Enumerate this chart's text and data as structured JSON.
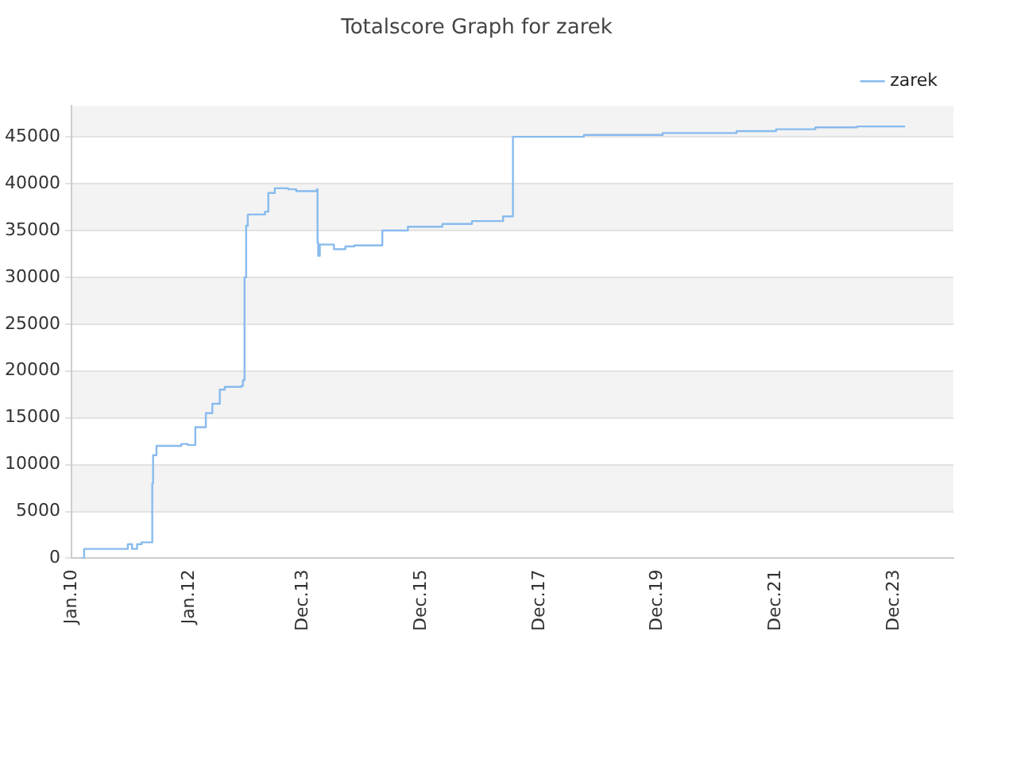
{
  "chart_data": {
    "type": "step",
    "title": "Totalscore Graph for zarek",
    "x": [
      "2010-03-01",
      "2010-03-20",
      "2010-12-15",
      "2011-01-10",
      "2011-02-10",
      "2011-03-10",
      "2011-05-15",
      "2011-05-20",
      "2011-06-10",
      "2011-07-05",
      "2011-11-10",
      "2011-12-20",
      "2012-02-05",
      "2012-04-10",
      "2012-05-20",
      "2012-07-05",
      "2012-08-05",
      "2012-11-15",
      "2012-11-25",
      "2012-12-05",
      "2012-12-15",
      "2012-12-25",
      "2013-04-10",
      "2013-05-01",
      "2013-06-10",
      "2013-09-01",
      "2013-10-20",
      "2014-02-25",
      "2014-03-01",
      "2014-03-05",
      "2014-03-15",
      "2014-06-10",
      "2014-08-20",
      "2014-10-15",
      "2014-11-20",
      "2015-04-05",
      "2015-09-10",
      "2016-04-10",
      "2016-10-10",
      "2017-04-20",
      "2017-06-20",
      "2018-09-01",
      "2020-01-01",
      "2021-04-01",
      "2021-12-01",
      "2022-08-01",
      "2023-04-15",
      "2024-02-01"
    ],
    "series": [
      {
        "name": "zarek",
        "color": "#88bbee",
        "values": [
          0,
          1000,
          1500,
          1000,
          1500,
          1700,
          8000,
          11000,
          12000,
          12000,
          12200,
          12100,
          14000,
          15500,
          16500,
          18000,
          18300,
          18400,
          19000,
          30000,
          35500,
          36700,
          37000,
          39000,
          39500,
          39400,
          39200,
          39400,
          33700,
          32300,
          33500,
          33000,
          33300,
          33400,
          33400,
          35000,
          35400,
          35700,
          36000,
          36500,
          45000,
          45200,
          45400,
          45600,
          45800,
          46000,
          46100,
          46200
        ]
      }
    ],
    "xlim": [
      "2010-01-01",
      "2024-12-01"
    ],
    "xticks": [
      {
        "value": "2010-01-01",
        "label": "Jan.10"
      },
      {
        "value": "2012-01-01",
        "label": "Jan.12"
      },
      {
        "value": "2013-12-01",
        "label": "Dec.13"
      },
      {
        "value": "2015-12-01",
        "label": "Dec.15"
      },
      {
        "value": "2017-12-01",
        "label": "Dec.17"
      },
      {
        "value": "2019-12-01",
        "label": "Dec.19"
      },
      {
        "value": "2021-12-01",
        "label": "Dec.21"
      },
      {
        "value": "2023-12-01",
        "label": "Dec.23"
      }
    ],
    "ylim": [
      0,
      48300
    ],
    "yticks": [
      0,
      5000,
      10000,
      15000,
      20000,
      25000,
      30000,
      35000,
      40000,
      45000
    ],
    "grid": "y",
    "legend": "top right",
    "marker": "none"
  }
}
